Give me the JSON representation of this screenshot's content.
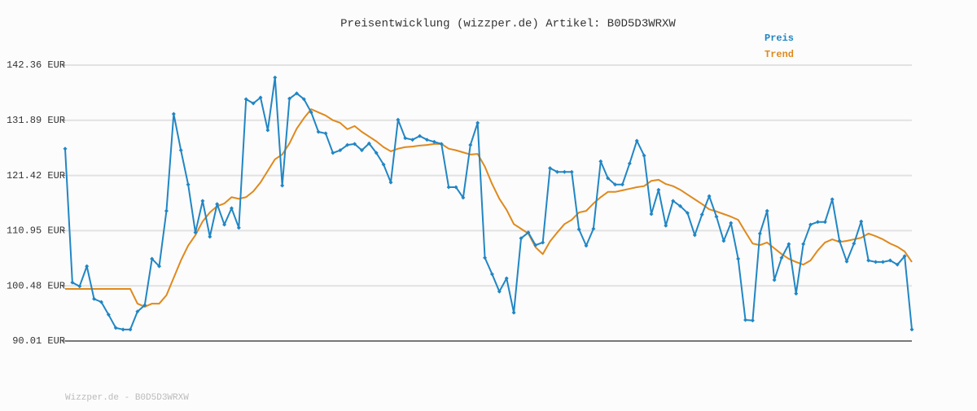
{
  "chart_data": {
    "type": "line",
    "title": "Preisentwicklung (wizzper.de) Artikel: B0D5D3WRXW",
    "footer": "Wizzper.de - B0D5D3WRXW",
    "ylim": [
      90.01,
      142.36
    ],
    "yticks": [
      {
        "value": 90.01,
        "label": "90.01 EUR"
      },
      {
        "value": 100.48,
        "label": "100.48 EUR"
      },
      {
        "value": 110.95,
        "label": "110.95 EUR"
      },
      {
        "value": 121.42,
        "label": "121.42 EUR"
      },
      {
        "value": 131.89,
        "label": "131.89 EUR"
      },
      {
        "value": 142.36,
        "label": "142.36 EUR"
      }
    ],
    "grid": true,
    "legend": "top-right",
    "series": [
      {
        "name": "Preis",
        "color": "#2186c4",
        "markers": true,
        "values": [
          126.5,
          101.1,
          100.4,
          104.2,
          98.0,
          97.4,
          95.0,
          92.5,
          92.2,
          92.2,
          95.6,
          96.8,
          105.6,
          104.2,
          114.7,
          133.1,
          126.2,
          119.7,
          110.6,
          116.6,
          109.8,
          116.0,
          112.1,
          115.2,
          111.5,
          135.9,
          135.1,
          136.2,
          130.0,
          140.0,
          119.5,
          136.0,
          137.0,
          135.9,
          133.4,
          129.7,
          129.4,
          125.7,
          126.2,
          127.2,
          127.4,
          126.2,
          127.5,
          125.7,
          123.5,
          120.1,
          132.0,
          128.5,
          128.2,
          128.9,
          128.2,
          127.8,
          127.4,
          119.2,
          119.2,
          117.2,
          127.2,
          131.4,
          105.8,
          102.7,
          99.4,
          101.9,
          95.4,
          109.5,
          110.6,
          108.2,
          108.7,
          122.8,
          122.1,
          122.1,
          122.1,
          111.2,
          108.1,
          111.3,
          124.1,
          120.9,
          119.7,
          119.7,
          123.7,
          128.0,
          125.2,
          114.1,
          118.7,
          111.9,
          116.6,
          115.6,
          114.3,
          110.1,
          114.0,
          117.5,
          113.6,
          109.0,
          112.4,
          105.6,
          94.0,
          93.9,
          110.4,
          114.7,
          101.6,
          105.8,
          108.4,
          99.0,
          108.4,
          112.1,
          112.6,
          112.6,
          116.9,
          109.0,
          105.1,
          108.5,
          112.7,
          105.3,
          105.0,
          105.0,
          105.3,
          104.5,
          106.1,
          92.2
        ]
      },
      {
        "name": "Trend",
        "color": "#e0891c",
        "markers": false,
        "values": [
          99.9,
          99.9,
          99.9,
          99.9,
          99.9,
          99.9,
          99.9,
          99.9,
          99.9,
          99.9,
          97.1,
          96.5,
          97.1,
          97.1,
          98.7,
          102.0,
          105.3,
          108.1,
          110.1,
          112.7,
          114.4,
          115.6,
          116.1,
          117.3,
          117.0,
          117.3,
          118.4,
          120.1,
          122.3,
          124.5,
          125.4,
          127.5,
          130.3,
          132.3,
          134.0,
          133.4,
          132.8,
          131.9,
          131.4,
          130.2,
          130.8,
          129.7,
          128.8,
          127.9,
          126.8,
          126.0,
          126.5,
          126.8,
          126.9,
          127.1,
          127.2,
          127.4,
          127.4,
          126.5,
          126.2,
          125.8,
          125.4,
          125.5,
          123.1,
          119.8,
          117.0,
          114.9,
          112.2,
          111.3,
          110.4,
          107.8,
          106.5,
          108.9,
          110.6,
          112.2,
          113.0,
          114.4,
          114.7,
          116.1,
          117.3,
          118.3,
          118.3,
          118.6,
          118.9,
          119.2,
          119.4,
          120.4,
          120.6,
          119.8,
          119.4,
          118.7,
          117.8,
          116.9,
          116.0,
          115.0,
          114.6,
          114.1,
          113.6,
          113.0,
          110.7,
          108.5,
          108.2,
          108.7,
          107.6,
          106.5,
          105.6,
          105.0,
          104.5,
          105.3,
          107.2,
          108.7,
          109.3,
          108.8,
          109.0,
          109.3,
          109.6,
          110.4,
          109.9,
          109.3,
          108.5,
          107.9,
          107.0,
          105.0
        ]
      }
    ]
  }
}
